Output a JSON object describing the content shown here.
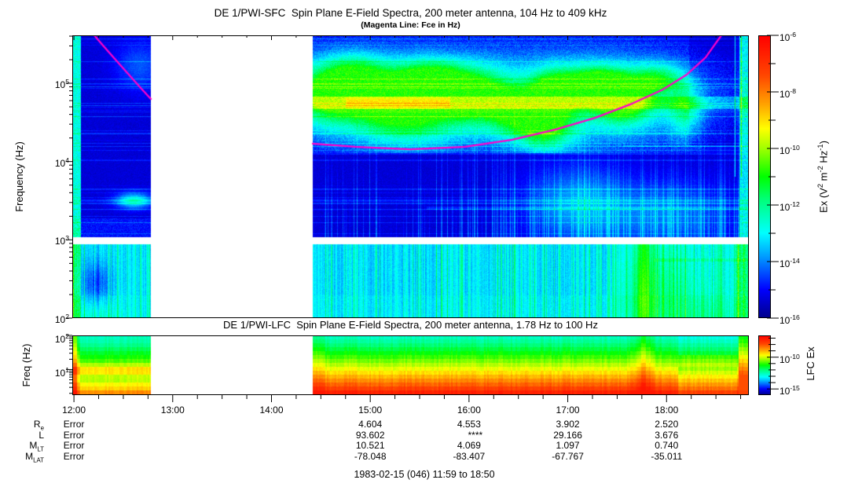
{
  "header": {
    "sfc_title": "DE 1/PWI-SFC  Spin Plane E-Field Spectra, 200 meter antenna, 104 Hz to 409 kHz",
    "sfc_subtitle": "(Magenta Line: Fce in Hz)",
    "lfc_title": "DE 1/PWI-LFC  Spin Plane E-Field Spectra, 200 meter antenna, 1.78 Hz to 100 Hz"
  },
  "caption": "1983-02-15 (046) 11:59 to 18:50",
  "sfc_axis": {
    "ylabel": "Frequency (Hz)",
    "yticks": [
      {
        "b": "10",
        "e": "5",
        "logf": 5
      },
      {
        "b": "10",
        "e": "4",
        "logf": 4
      },
      {
        "b": "10",
        "e": "3",
        "logf": 3
      },
      {
        "b": "10",
        "e": "2",
        "logf": 2
      }
    ]
  },
  "lfc_axis": {
    "ylabel": "Freq (Hz)",
    "yticks": [
      {
        "b": "10",
        "e": "2",
        "logf": 2
      },
      {
        "b": "10",
        "e": "1",
        "logf": 1
      }
    ]
  },
  "xaxis": {
    "labels": [
      {
        "t": 12,
        "text": "12:00"
      },
      {
        "t": 13,
        "text": "13:00"
      },
      {
        "t": 14,
        "text": "14:00"
      },
      {
        "t": 15,
        "text": "15:00"
      },
      {
        "t": 16,
        "text": "16:00"
      },
      {
        "t": 17,
        "text": "17:00"
      },
      {
        "t": 18,
        "text": "18:00"
      }
    ]
  },
  "colorbar_sfc": {
    "label_segments": [
      {
        "t": "Ex (V"
      },
      {
        "s": "2"
      },
      {
        "t": " m"
      },
      {
        "s": "-2"
      },
      {
        "t": " Hz"
      },
      {
        "s": "-1"
      },
      {
        "t": ")"
      }
    ],
    "ticks": [
      {
        "b": "10",
        "e": "-6",
        "exp": -6
      },
      {
        "b": "10",
        "e": "-8",
        "exp": -8
      },
      {
        "b": "10",
        "e": "-10",
        "exp": -10
      },
      {
        "b": "10",
        "e": "-12",
        "exp": -12
      },
      {
        "b": "10",
        "e": "-14",
        "exp": -14
      },
      {
        "b": "10",
        "e": "-16",
        "exp": -16
      }
    ]
  },
  "colorbar_lfc": {
    "label": "LFC Ex",
    "ticks": [
      {
        "b": "10",
        "e": "-10",
        "fy": 0.365
      },
      {
        "b": "10",
        "e": "-15",
        "fy": 0.897
      }
    ]
  },
  "ephemeris": {
    "rows": [
      {
        "label": {
          "b": "R",
          "sub": "e"
        },
        "values": [
          "Error",
          "",
          "",
          "4.604",
          {
            "v": "4.553"
          },
          "3.902",
          "2.520"
        ]
      },
      {
        "label": {
          "b": "L",
          "sub": ""
        },
        "values": [
          "Error",
          "",
          "",
          "93.602",
          {
            "v": "****",
            "dx": 8
          },
          "29.166",
          "3.676"
        ]
      },
      {
        "label": {
          "b": "M",
          "sub": "LT"
        },
        "values": [
          "Error",
          "",
          "",
          "10.521",
          {
            "v": "4.069"
          },
          "1.097",
          "0.740"
        ]
      },
      {
        "label": {
          "b": "M",
          "sub": "LAT"
        },
        "values": [
          "Error",
          "",
          "",
          "-78.048",
          {
            "v": "-83.407"
          },
          "-67.767",
          "-35.011"
        ]
      }
    ]
  },
  "chart_data": {
    "type": "heatmap",
    "title": "DE 1/PWI-SFC Spin Plane E-Field Spectra, 200 meter antenna, 104 Hz to 409 kHz",
    "subtitle": "DE 1/PWI-LFC Spin Plane E-Field Spectra, 200 meter antenna, 1.78 Hz to 100 Hz",
    "date": "1983-02-15 (046)",
    "time_range": {
      "start_hour": 11.9833,
      "end_hour": 18.8333,
      "start": "11:59",
      "end": "18:50"
    },
    "data_gap": {
      "start": "12:47",
      "end": "14:25",
      "frac": [
        0.1162,
        0.3554
      ]
    },
    "sfc": {
      "freq_range_hz": [
        104,
        409000
      ],
      "display_log_range": [
        2,
        5.612
      ],
      "ylabel": "Frequency (Hz)",
      "value_scale": "Ex (V2 m-2 Hz-1), log10 from -16 to -6",
      "blank_band_logf": [
        2.96,
        3.04
      ],
      "features": "AKR emission patches above 60 kHz post-gap; deep-blue quiet band 1-30 kHz; bright low band below 1 kHz with vertical bursts; interference stripe near 50-70 kHz"
    },
    "lfc": {
      "freq_range_hz": [
        1.78,
        100
      ],
      "display_log_range": [
        0.25,
        2
      ],
      "ylabel": "Freq (Hz)",
      "value_scale": "LFC Ex, log10 from about -16 to -7",
      "features": "intense red at lowest frequencies rising through orange-yellow to green-cyan at 100 Hz; quieter green-cyan block before the gap"
    },
    "fce_line": {
      "meaning": "electron cyclotron frequency Fce in Hz",
      "color": "#ff00cc",
      "points_pre_gap_frac": [
        [
          0.0325,
          0.0
        ],
        [
          0.0465,
          0.039
        ],
        [
          0.0639,
          0.086
        ],
        [
          0.0836,
          0.139
        ],
        [
          0.1022,
          0.189
        ],
        [
          0.1162,
          0.225
        ]
      ],
      "points_post_gap_frac": [
        [
          0.3554,
          0.383
        ],
        [
          0.4181,
          0.394
        ],
        [
          0.4994,
          0.403
        ],
        [
          0.5807,
          0.394
        ],
        [
          0.6504,
          0.369
        ],
        [
          0.7143,
          0.333
        ],
        [
          0.7724,
          0.292
        ],
        [
          0.827,
          0.242
        ],
        [
          0.8711,
          0.194
        ],
        [
          0.9082,
          0.139
        ],
        [
          0.9361,
          0.078
        ],
        [
          0.9593,
          0.0
        ]
      ]
    },
    "colormap": "rainbow (dark blue -> blue -> cyan -> green -> yellow -> orange -> red)"
  }
}
